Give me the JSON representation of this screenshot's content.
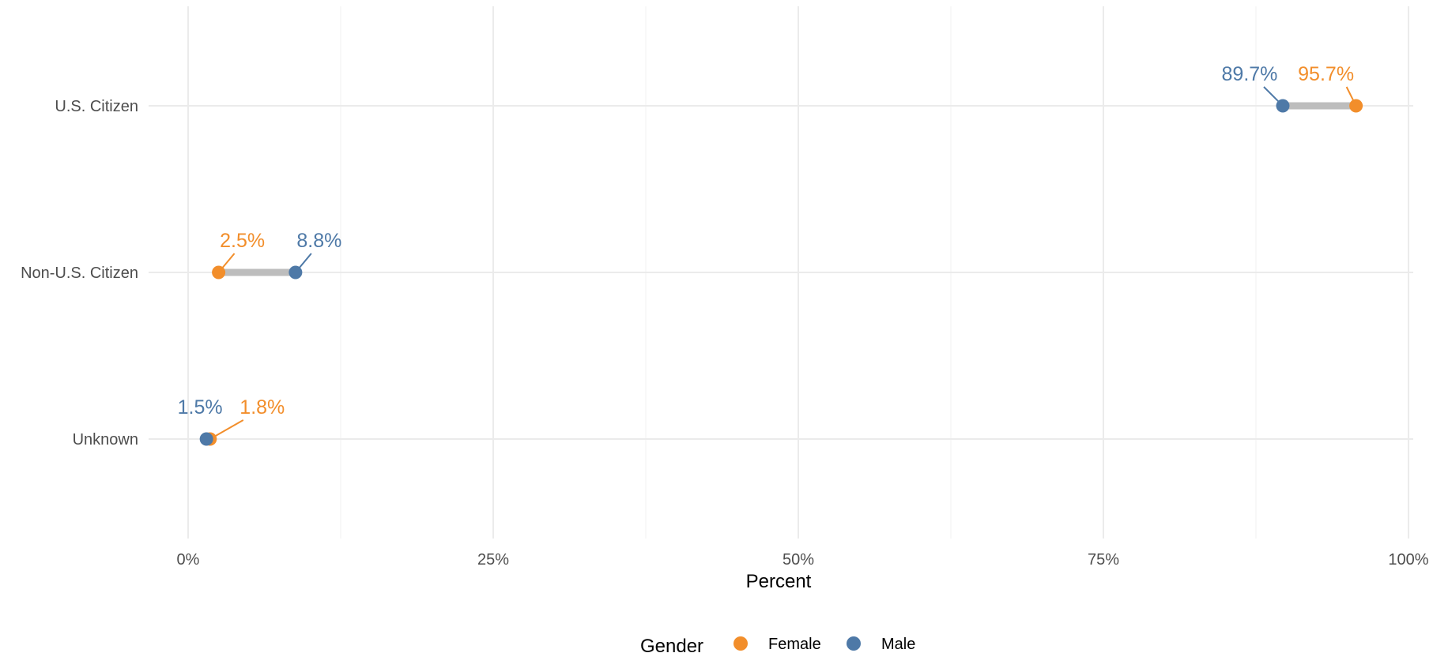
{
  "chart_data": {
    "type": "dumbbell",
    "xlabel": "Percent",
    "ylabel": "",
    "xlim": [
      0,
      100
    ],
    "x_ticks": [
      {
        "value": 0,
        "label": "0%"
      },
      {
        "value": 25,
        "label": "25%"
      },
      {
        "value": 50,
        "label": "50%"
      },
      {
        "value": 75,
        "label": "75%"
      },
      {
        "value": 100,
        "label": "100%"
      }
    ],
    "categories": [
      "U.S. Citizen",
      "Non-U.S. Citizen",
      "Unknown"
    ],
    "series": [
      {
        "name": "Female",
        "color": "#F28E2B",
        "values": [
          95.7,
          2.5,
          1.8
        ],
        "labels": [
          "95.7%",
          "2.5%",
          "1.8%"
        ]
      },
      {
        "name": "Male",
        "color": "#4E79A7",
        "values": [
          89.7,
          8.8,
          1.5
        ],
        "labels": [
          "89.7%",
          "8.8%",
          "1.5%"
        ]
      }
    ],
    "segment_color": "#BDBDBD",
    "legend": {
      "title": "Gender",
      "position": "bottom"
    },
    "grid": true
  }
}
